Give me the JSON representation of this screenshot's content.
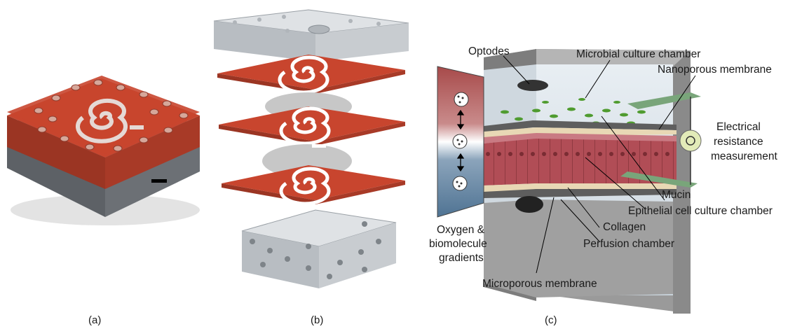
{
  "panels": {
    "a": {
      "caption": "(a)"
    },
    "b": {
      "caption": "(b)"
    },
    "c": {
      "caption": "(c)",
      "labels": {
        "optodes": "Optodes",
        "microbial": "Microbial culture chamber",
        "nanoporous": "Nanoporous membrane",
        "electrical_1": "Electrical",
        "electrical_2": "resistance",
        "electrical_3": "measurement",
        "mucin": "Mucin",
        "epithelial": "Epithelial cell culture chamber",
        "collagen": "Collagen",
        "perfusion": "Perfusion chamber",
        "oxygen_1": "Oxygen &",
        "oxygen_2": "biomolecule",
        "oxygen_3": "gradients",
        "microporous": "Microporous membrane"
      }
    }
  },
  "colors": {
    "pdms_red": "#c8452e",
    "glass": "#d7dadd",
    "chamber_gray": "#8c8c8c",
    "epithelium": "#a8474f",
    "bacteria": "#4f9b2f",
    "oxygen_red": "#a74a4a",
    "oxygen_blue": "#4f7393"
  }
}
